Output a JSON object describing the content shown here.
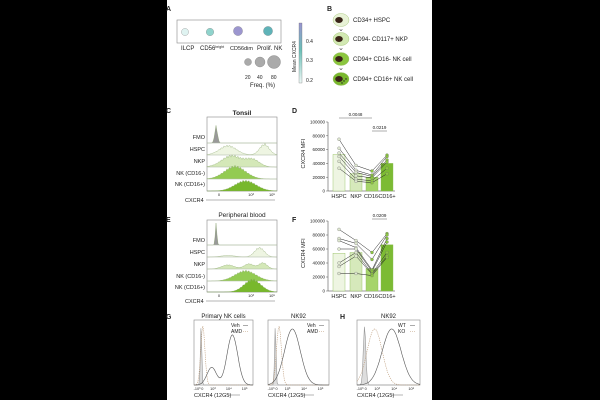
{
  "panels": {
    "a": {
      "letter": "A",
      "populations": [
        {
          "name": "ILCP",
          "color": "#dff3f1"
        },
        {
          "name": "CD56bright",
          "color": "#8fd3cc"
        },
        {
          "name": "CD56dim",
          "color": "#9c96cf"
        },
        {
          "name": "Prolif. NK",
          "color": "#5fb3b8"
        }
      ],
      "pop_labels": [
        "ILCP",
        "CD56",
        "bright",
        "CD56",
        "dim",
        "Prolif. NK"
      ],
      "freq_legend": {
        "values": [
          "20",
          "40",
          "80"
        ],
        "title": "Freq. (%)"
      },
      "colorbar": {
        "title": "Mean CXCR4",
        "ticks": [
          "0.4",
          "0.3",
          "0.2"
        ],
        "range": [
          0.18,
          0.48
        ]
      }
    },
    "b": {
      "letter": "B",
      "stages": [
        "CD34+ HSPC",
        "CD94- CD117+ NKP",
        "CD94+ CD16- NK cell",
        "CD94+ CD16+ NK cell"
      ],
      "colors": [
        "#e8f2d6",
        "#d2e8b2",
        "#8cc63f",
        "#7ab82e"
      ]
    },
    "c": {
      "letter": "C",
      "title": "Tonsil",
      "rows": [
        "FMO",
        "HSPC",
        "NKP",
        "NK (CD16-)",
        "NK (CD16+)"
      ],
      "xlabel": "CXCR4",
      "ticks": [
        "0",
        "10³",
        "10⁵"
      ]
    },
    "e": {
      "letter": "E",
      "title": "Peripheral blood",
      "rows": [
        "FMO",
        "HSPC",
        "NKP",
        "NK (CD16-)",
        "NK (CD16+)"
      ],
      "xlabel": "CXCR4",
      "ticks": [
        "0",
        "10³",
        "10⁵"
      ]
    },
    "g": {
      "letter": "G",
      "titles": [
        "Primary NK cells",
        "NK92"
      ],
      "legend": [
        "Veh",
        "AMD"
      ],
      "xlabel": "CXCR4 (12G5)",
      "ticks": [
        "-10³",
        "0",
        "10³",
        "10⁴",
        "10⁵"
      ]
    },
    "h": {
      "letter": "H",
      "title": "NK92",
      "legend": [
        "WT",
        "KO"
      ],
      "xlabel": "CXCR4 (12G5)",
      "ticks": [
        "-10³",
        "0",
        "10³",
        "10⁴",
        "10⁵"
      ]
    }
  },
  "chart_data": [
    {
      "panel": "D",
      "type": "bar",
      "categories": [
        "HSPC",
        "NKP",
        "CD16-",
        "CD16+"
      ],
      "values": [
        53000,
        25000,
        20000,
        40000
      ],
      "points": [
        [
          75000,
          62000,
          55000,
          50000,
          43000,
          33000
        ],
        [
          37000,
          30000,
          27000,
          22000,
          17000,
          14000
        ],
        [
          29000,
          23000,
          21000,
          19000,
          15000,
          12000
        ],
        [
          52000,
          50000,
          45000,
          42000,
          33000,
          25000
        ]
      ],
      "ylabel": "CXCR4 MFI",
      "ylim": [
        0,
        100000
      ],
      "yticks": [
        "0",
        "20000",
        "40000",
        "60000",
        "80000",
        "100000"
      ],
      "annotations": [
        {
          "text": "0.0048",
          "from": 0,
          "to": 2
        },
        {
          "text": "0.0219",
          "from": 2,
          "to": 3
        }
      ],
      "colors": [
        "#eef5e2",
        "#d6e9bb",
        "#a6d46a",
        "#7cbb33"
      ]
    },
    {
      "panel": "F",
      "type": "bar",
      "categories": [
        "HSPC",
        "NKP",
        "CD16-",
        "CD16+"
      ],
      "values": [
        54000,
        55000,
        32000,
        66000
      ],
      "points": [
        [
          88000,
          75000,
          72000,
          60000,
          40000,
          35000,
          25000
        ],
        [
          72000,
          68000,
          62000,
          60000,
          55000,
          50000,
          25000
        ],
        [
          55000,
          45000,
          30000,
          28000,
          25000,
          24000,
          22000
        ],
        [
          82000,
          80000,
          75000,
          70000,
          55000,
          50000,
          48000
        ]
      ],
      "ylabel": "CXCR4 MFI",
      "ylim": [
        0,
        100000
      ],
      "yticks": [
        "0",
        "20000",
        "40000",
        "60000",
        "80000",
        "100000"
      ],
      "annotations": [
        {
          "text": "0.0209",
          "from": 2,
          "to": 3
        }
      ],
      "colors": [
        "#eef5e2",
        "#d6e9bb",
        "#a6d46a",
        "#7cbb33"
      ]
    }
  ]
}
